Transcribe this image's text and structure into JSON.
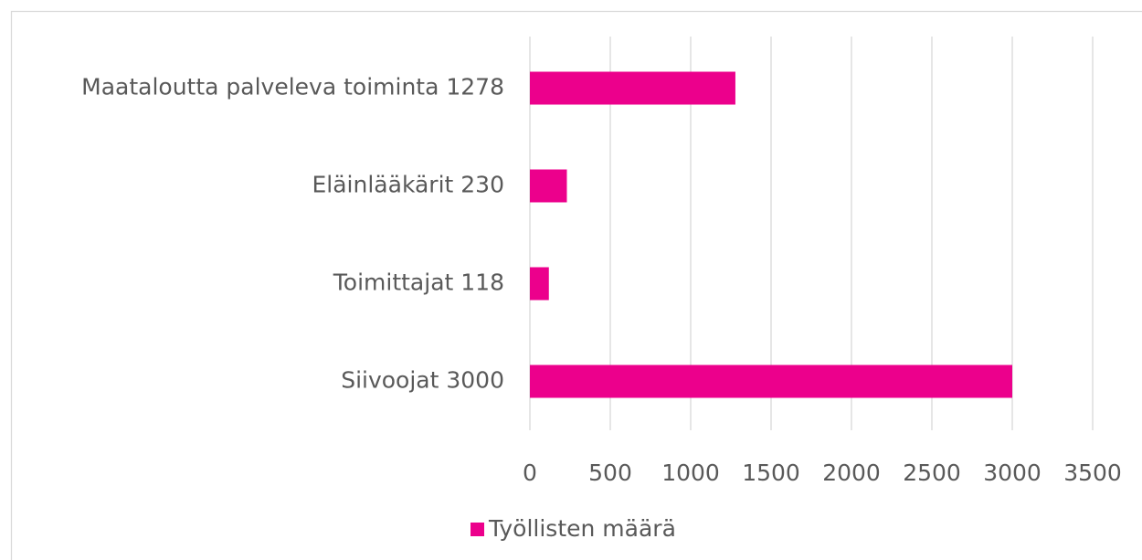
{
  "chart_data": {
    "type": "hbar",
    "categories": [
      "Maataloutta palveleva toiminta  1278",
      "Eläinlääkärit  230",
      "Toimittajat  118",
      "Siivoojat  3000"
    ],
    "series": [
      {
        "name": "Työllisten määrä",
        "color": "#ec008c",
        "values": [
          1278,
          230,
          118,
          3000
        ]
      }
    ],
    "xlim": [
      0,
      3500
    ],
    "xticks": [
      0,
      500,
      1000,
      1500,
      2000,
      2500,
      3000,
      3500
    ],
    "grid": true,
    "legend": "bottom"
  }
}
